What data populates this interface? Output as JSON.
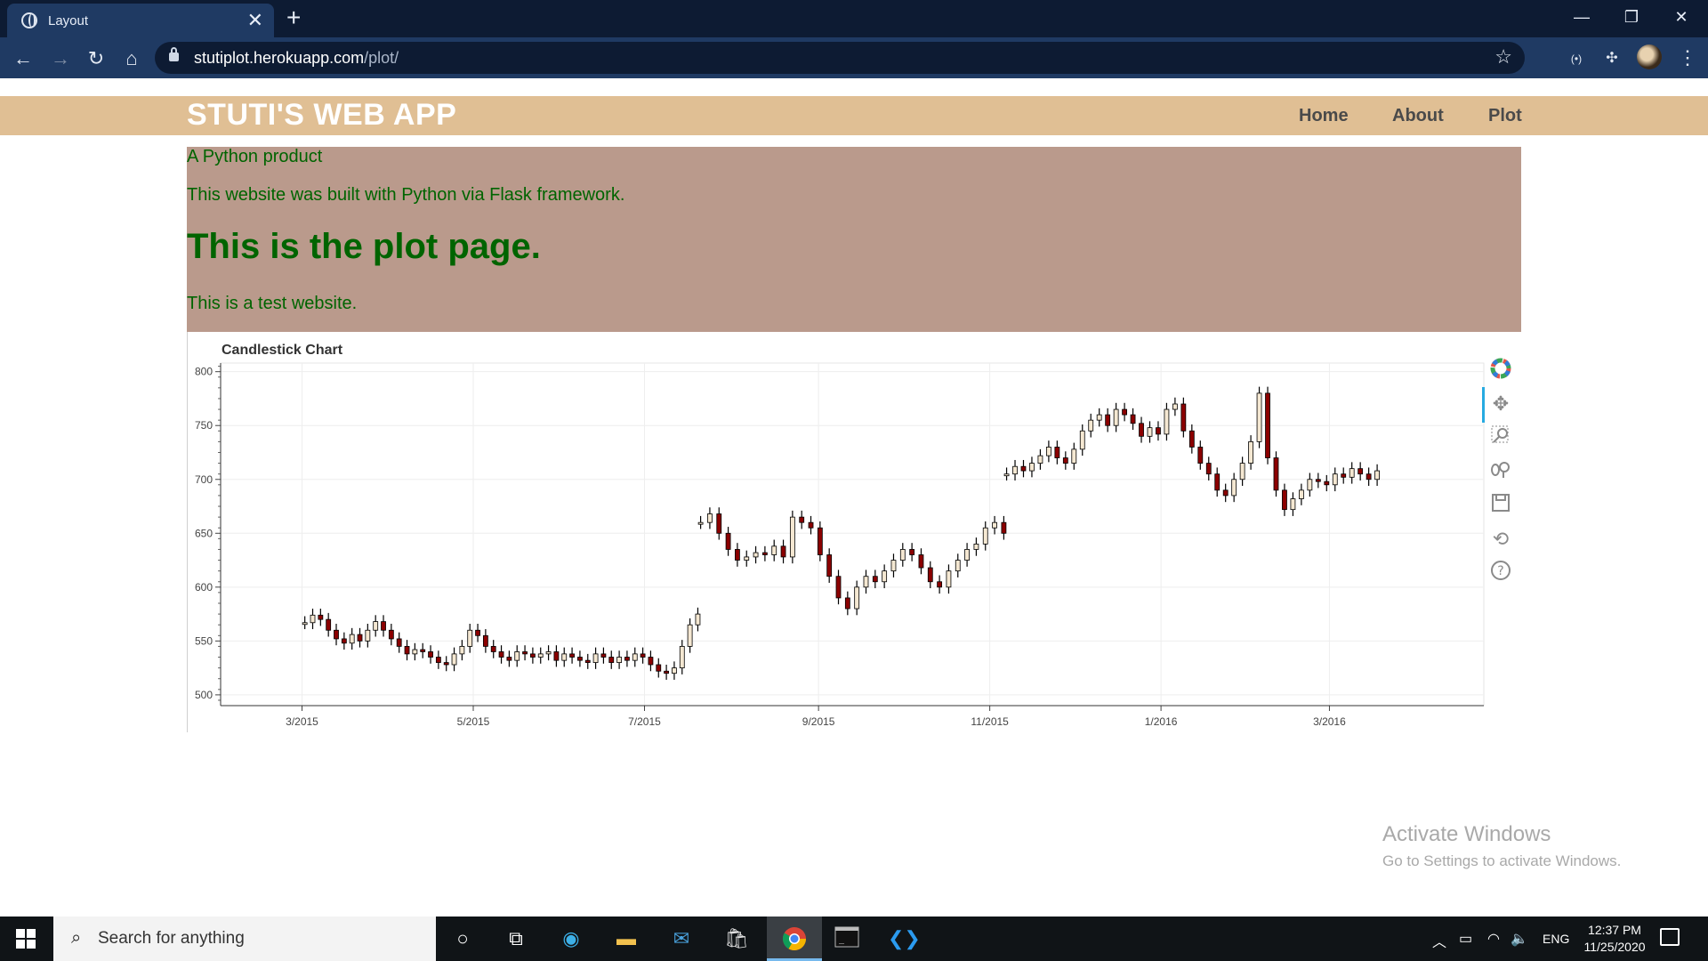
{
  "browser": {
    "tab_title": "Layout",
    "tab_close": "✕",
    "new_tab": "+",
    "url_host": "stutiplot.herokuapp.com",
    "url_path": "/plot/",
    "window_controls": [
      "—",
      "❐",
      "✕"
    ]
  },
  "site": {
    "brand": "STUTI'S WEB APP",
    "nav": [
      "Home",
      "About",
      "Plot"
    ],
    "hero": {
      "line1": "A Python product",
      "line2": "This website was built with Python via Flask framework.",
      "heading": "This is the plot page.",
      "line3": "This is a test website."
    }
  },
  "chart_data": {
    "type": "candlestick",
    "title": "Candlestick Chart",
    "xlabel": "",
    "ylabel": "",
    "ylim": [
      490,
      808
    ],
    "yticks": [
      500,
      550,
      600,
      650,
      700,
      750,
      800
    ],
    "xtick_labels": [
      "3/2015",
      "5/2015",
      "7/2015",
      "9/2015",
      "11/2015",
      "1/2016",
      "3/2016"
    ],
    "xlim": [
      "2015-01-31",
      "2016-04-25"
    ],
    "colors": {
      "increasing": "#f5e8d2",
      "decreasing": "#8b0000",
      "wick": "#000000"
    },
    "grid": true,
    "legend": "none",
    "segments": [
      {
        "start": "2015-03-02",
        "end": "2015-07-20",
        "values": [
          567,
          574,
          570,
          560,
          552,
          548,
          556,
          550,
          560,
          568,
          560,
          552,
          545,
          538,
          542,
          540,
          535,
          530,
          528,
          538,
          545,
          560,
          555,
          545,
          540,
          535,
          532,
          540,
          538,
          535,
          538,
          540,
          532,
          538,
          535,
          532,
          530,
          538,
          535,
          530,
          535,
          532,
          538,
          535,
          528,
          522,
          520,
          525,
          545,
          565,
          575
        ]
      },
      {
        "start": "2015-07-21",
        "end": "2015-11-06",
        "values": [
          660,
          668,
          650,
          635,
          625,
          628,
          632,
          630,
          638,
          628,
          665,
          660,
          655,
          630,
          610,
          590,
          580,
          600,
          610,
          605,
          615,
          625,
          635,
          630,
          618,
          605,
          600,
          615,
          625,
          635,
          640,
          655,
          660,
          650
        ]
      },
      {
        "start": "2015-11-07",
        "end": "2016-03-18",
        "values": [
          705,
          712,
          708,
          715,
          722,
          730,
          720,
          715,
          728,
          745,
          755,
          760,
          750,
          765,
          760,
          752,
          740,
          748,
          742,
          765,
          770,
          745,
          730,
          715,
          705,
          690,
          685,
          700,
          715,
          735,
          780,
          720,
          690,
          672,
          682,
          690,
          700,
          698,
          695,
          705,
          702,
          710,
          705,
          700,
          708
        ]
      }
    ]
  },
  "chart_tools": [
    "bokeh-logo-icon",
    "pan-icon",
    "box-zoom-icon",
    "wheel-zoom-icon",
    "save-icon",
    "reset-icon",
    "help-icon"
  ],
  "watermark": {
    "line1": "Activate Windows",
    "line2": "Go to Settings to activate Windows."
  },
  "taskbar": {
    "search_placeholder": "Search for anything",
    "lang": "ENG",
    "time": "12:37 PM",
    "date": "11/25/2020"
  }
}
